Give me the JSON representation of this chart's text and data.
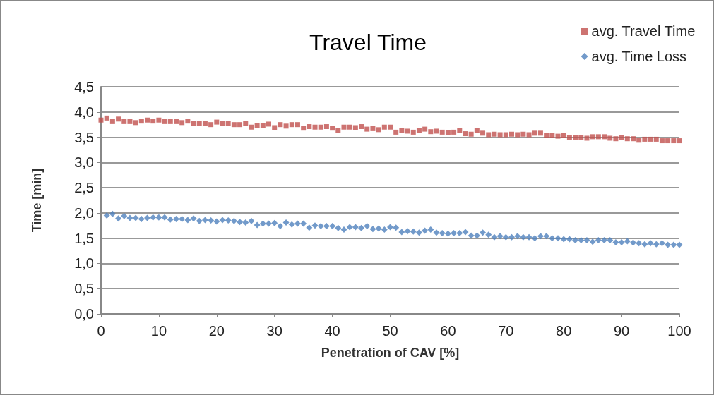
{
  "chart_data": {
    "type": "scatter",
    "title": "Travel Time",
    "xlabel": "Penetration of CAV [%]",
    "ylabel": "Time [min]",
    "xlim": [
      0,
      100
    ],
    "xticks": [
      0,
      10,
      20,
      30,
      40,
      50,
      60,
      70,
      80,
      90,
      100
    ],
    "ylim": [
      0,
      4.5
    ],
    "yticks": [
      {
        "value": 0,
        "label": "0,0"
      },
      {
        "value": 0.5,
        "label": "0,5"
      },
      {
        "value": 1,
        "label": "1,0"
      },
      {
        "value": 1.5,
        "label": "1,5"
      },
      {
        "value": 2,
        "label": "2,0"
      },
      {
        "value": 2.5,
        "label": "2,5"
      },
      {
        "value": 3,
        "label": "3,0"
      },
      {
        "value": 3.5,
        "label": "3,5"
      },
      {
        "value": 4,
        "label": "4,0"
      },
      {
        "value": 4.5,
        "label": "4,5"
      }
    ],
    "grid": "y",
    "legend": "top right",
    "series": [
      {
        "name": "avg. Travel Time",
        "color": "#c0504d",
        "marker": "square",
        "x": [
          0,
          1,
          2,
          3,
          4,
          5,
          6,
          7,
          8,
          9,
          10,
          11,
          12,
          13,
          14,
          15,
          16,
          17,
          18,
          19,
          20,
          21,
          22,
          23,
          24,
          25,
          26,
          27,
          28,
          29,
          30,
          31,
          32,
          33,
          34,
          35,
          36,
          37,
          38,
          39,
          40,
          41,
          42,
          43,
          44,
          45,
          46,
          47,
          48,
          49,
          50,
          51,
          52,
          53,
          54,
          55,
          56,
          57,
          58,
          59,
          60,
          61,
          62,
          63,
          64,
          65,
          66,
          67,
          68,
          69,
          70,
          71,
          72,
          73,
          74,
          75,
          76,
          77,
          78,
          79,
          80,
          81,
          82,
          83,
          84,
          85,
          86,
          87,
          88,
          89,
          90,
          91,
          92,
          93,
          94,
          95,
          96,
          97,
          98,
          99,
          100
        ],
        "values": [
          3.84,
          3.88,
          3.81,
          3.86,
          3.81,
          3.81,
          3.79,
          3.82,
          3.84,
          3.82,
          3.84,
          3.81,
          3.81,
          3.81,
          3.79,
          3.82,
          3.77,
          3.78,
          3.78,
          3.75,
          3.8,
          3.78,
          3.77,
          3.75,
          3.75,
          3.78,
          3.7,
          3.73,
          3.73,
          3.76,
          3.69,
          3.75,
          3.72,
          3.75,
          3.75,
          3.68,
          3.71,
          3.7,
          3.7,
          3.71,
          3.68,
          3.64,
          3.7,
          3.7,
          3.69,
          3.71,
          3.66,
          3.67,
          3.65,
          3.7,
          3.7,
          3.6,
          3.63,
          3.62,
          3.6,
          3.63,
          3.66,
          3.61,
          3.62,
          3.6,
          3.59,
          3.6,
          3.63,
          3.57,
          3.56,
          3.63,
          3.58,
          3.55,
          3.56,
          3.55,
          3.55,
          3.56,
          3.55,
          3.56,
          3.55,
          3.58,
          3.58,
          3.54,
          3.54,
          3.52,
          3.53,
          3.5,
          3.5,
          3.5,
          3.48,
          3.51,
          3.51,
          3.51,
          3.48,
          3.47,
          3.49,
          3.47,
          3.47,
          3.44,
          3.46,
          3.46,
          3.46,
          3.43,
          3.43,
          3.43,
          3.43
        ]
      },
      {
        "name": "avg. Time Loss",
        "color": "#4f81bd",
        "marker": "diamond",
        "x": [
          1,
          2,
          3,
          4,
          5,
          6,
          7,
          8,
          9,
          10,
          11,
          12,
          13,
          14,
          15,
          16,
          17,
          18,
          19,
          20,
          21,
          22,
          23,
          24,
          25,
          26,
          27,
          28,
          29,
          30,
          31,
          32,
          33,
          34,
          35,
          36,
          37,
          38,
          39,
          40,
          41,
          42,
          43,
          44,
          45,
          46,
          47,
          48,
          49,
          50,
          51,
          52,
          53,
          54,
          55,
          56,
          57,
          58,
          59,
          60,
          61,
          62,
          63,
          64,
          65,
          66,
          67,
          68,
          69,
          70,
          71,
          72,
          73,
          74,
          75,
          76,
          77,
          78,
          79,
          80,
          81,
          82,
          83,
          84,
          85,
          86,
          87,
          88,
          89,
          90,
          91,
          92,
          93,
          94,
          95,
          96,
          97,
          98,
          99,
          100
        ],
        "values": [
          1.95,
          1.98,
          1.89,
          1.94,
          1.9,
          1.9,
          1.88,
          1.9,
          1.91,
          1.91,
          1.91,
          1.87,
          1.88,
          1.88,
          1.86,
          1.89,
          1.84,
          1.86,
          1.85,
          1.83,
          1.86,
          1.85,
          1.84,
          1.82,
          1.81,
          1.84,
          1.76,
          1.79,
          1.79,
          1.8,
          1.74,
          1.81,
          1.77,
          1.79,
          1.79,
          1.71,
          1.75,
          1.74,
          1.74,
          1.74,
          1.7,
          1.67,
          1.72,
          1.72,
          1.7,
          1.74,
          1.68,
          1.69,
          1.67,
          1.72,
          1.71,
          1.62,
          1.64,
          1.63,
          1.61,
          1.65,
          1.67,
          1.61,
          1.6,
          1.59,
          1.6,
          1.6,
          1.62,
          1.55,
          1.55,
          1.61,
          1.57,
          1.52,
          1.54,
          1.52,
          1.52,
          1.54,
          1.52,
          1.52,
          1.5,
          1.54,
          1.54,
          1.5,
          1.5,
          1.48,
          1.48,
          1.46,
          1.46,
          1.46,
          1.43,
          1.46,
          1.46,
          1.46,
          1.42,
          1.42,
          1.44,
          1.41,
          1.4,
          1.38,
          1.4,
          1.38,
          1.4,
          1.37,
          1.37,
          1.37
        ]
      }
    ]
  }
}
